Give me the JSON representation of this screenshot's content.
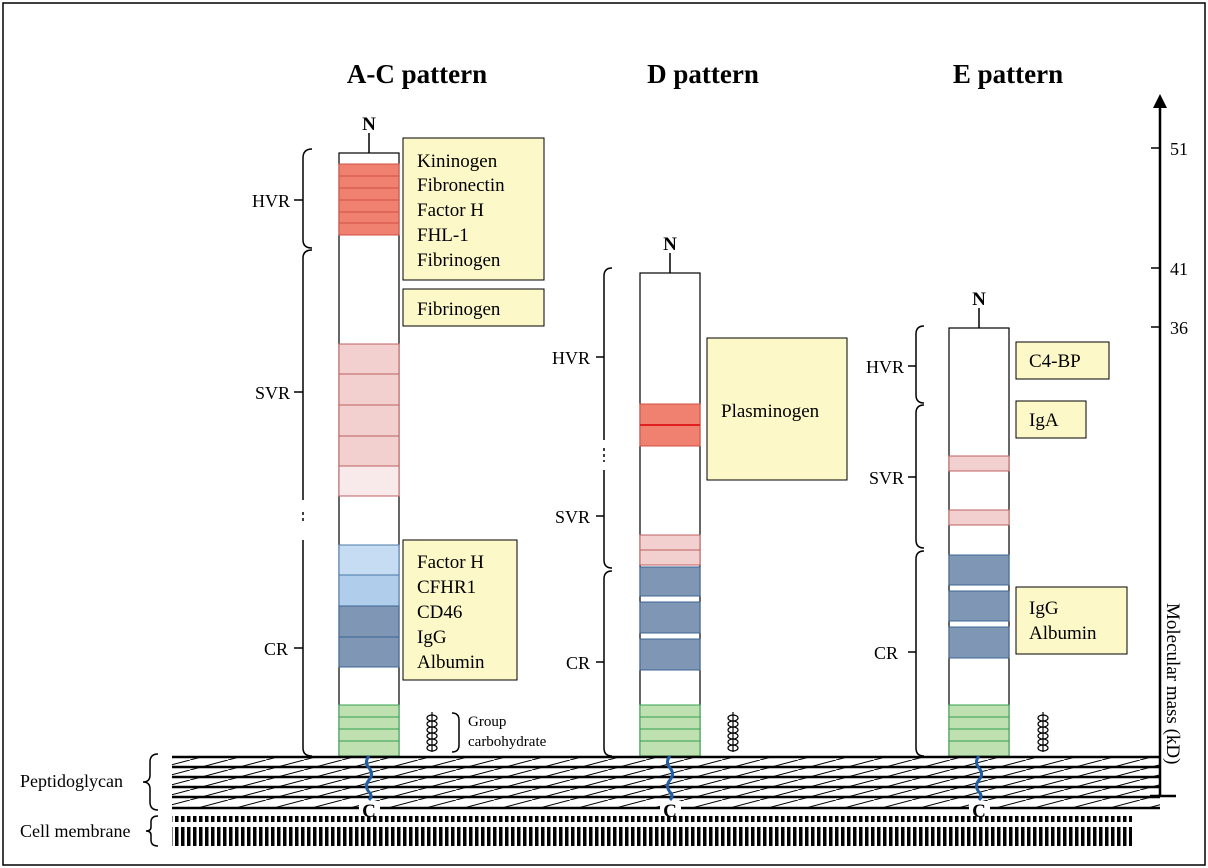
{
  "patterns": [
    {
      "title": "A-C pattern",
      "n_label": "N",
      "c_label": "C",
      "regions": [
        "HVR",
        "SVR",
        "CR"
      ],
      "binding_boxes": [
        [
          "Kininogen",
          "Fibronectin",
          "Factor H",
          "FHL-1",
          "Fibrinogen"
        ],
        [
          "Fibrinogen"
        ],
        [
          "Factor H",
          "CFHR1",
          "CD46",
          "IgG",
          "Albumin"
        ]
      ],
      "carbohydrate_label": [
        "Group",
        "carbohydrate"
      ]
    },
    {
      "title": "D pattern",
      "n_label": "N",
      "c_label": "C",
      "regions": [
        "HVR",
        "SVR",
        "CR"
      ],
      "binding_boxes": [
        [
          "Plasminogen"
        ]
      ]
    },
    {
      "title": "E pattern",
      "n_label": "N",
      "c_label": "C",
      "regions": [
        "HVR",
        "SVR",
        "CR"
      ],
      "binding_boxes": [
        [
          "C4-BP"
        ],
        [
          "IgA"
        ],
        [
          "IgG",
          "Albumin"
        ]
      ]
    }
  ],
  "layers": {
    "peptidoglycan": "Peptidoglycan",
    "membrane": "Cell membrane"
  },
  "axis": {
    "label": "Molecular mass (kD)",
    "ticks": [
      "51",
      "41",
      "36"
    ]
  },
  "colors": {
    "hvr_red": "#f08070",
    "svr_pink": "#f2d0d0",
    "cr_light_blue": "#c5dcf2",
    "cr_dark_blue": "#7f96b4",
    "carbohydrate_green": "#bfe0b0",
    "box_fill": "#fcf8c8",
    "anchor_blue": "#1f5fa8"
  }
}
